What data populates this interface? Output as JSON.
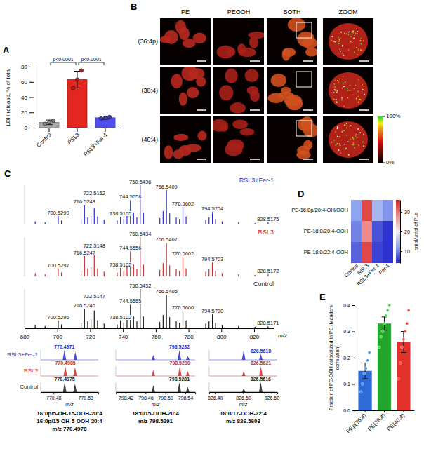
{
  "chart_data": [
    {
      "panel": "A",
      "type": "bar",
      "ylabel": "LDH release, % of total",
      "categories": [
        "Control",
        "RSL3",
        "RSL3+Fer-1"
      ],
      "values": [
        7,
        63,
        13
      ],
      "errors": [
        3,
        11,
        2
      ],
      "points": [
        [
          5,
          7,
          9
        ],
        [
          52,
          63,
          75
        ],
        [
          12,
          13,
          14
        ]
      ],
      "colors": [
        "#a9a9a9",
        "#e3261f",
        "#4f4ff0"
      ],
      "ylim": [
        0,
        80
      ],
      "yticks": [
        0,
        20,
        40,
        60,
        80
      ],
      "comparisons": [
        {
          "from": 0,
          "to": 1,
          "label": "p<0.0001"
        },
        {
          "from": 1,
          "to": 2,
          "label": "p<0.0001"
        }
      ]
    },
    {
      "panel": "B",
      "type": "image_grid",
      "columns": [
        "PE",
        "PEOOH",
        "BOTH",
        "ZOOM"
      ],
      "rows": [
        "(36:4p)",
        "(38:4)",
        "(40:4)"
      ],
      "colorbar": {
        "range": [
          0,
          100
        ],
        "ticks": [
          {
            "value": 100,
            "label": "100%"
          },
          {
            "value": 0,
            "label": "0%"
          }
        ]
      }
    },
    {
      "panel": "C",
      "type": "spectrum",
      "xlabel": "m/z",
      "xlim": [
        680,
        832
      ],
      "xticks": [
        680,
        700,
        720,
        740,
        760,
        780,
        800,
        820
      ],
      "ylim": [
        0,
        1
      ],
      "tick_labels": "x",
      "series": [
        {
          "name": "RSL3+Fer-1",
          "color": "#2c2ccf",
          "x": [
            686.5,
            692.5,
            700.5299,
            702.5,
            714.5,
            716.5248,
            718.5,
            720.5,
            722.5152,
            724.5,
            728.5,
            736.5,
            738.5105,
            740.5,
            742.5,
            744.5558,
            746.5,
            748.5,
            750.5436,
            752.5,
            762.5,
            764.5,
            766.5409,
            768.5,
            772.5,
            774.5,
            776.5602,
            778.5,
            790.5,
            792.5,
            794.5704,
            796.5,
            800.5,
            810.5,
            820.5,
            828.5175
          ],
          "values": [
            0.08,
            0.06,
            0.22,
            0.1,
            0.14,
            0.5,
            0.18,
            0.22,
            0.42,
            0.2,
            0.12,
            0.1,
            0.2,
            0.14,
            0.28,
            0.62,
            0.3,
            0.18,
            1.0,
            0.3,
            0.16,
            0.34,
            0.88,
            0.28,
            0.18,
            0.14,
            0.45,
            0.2,
            0.12,
            0.18,
            0.32,
            0.14,
            0.08,
            0.06,
            0.04,
            0.06
          ],
          "labels": [
            null,
            null,
            "700.5299",
            null,
            null,
            "716.5248",
            null,
            null,
            "722.5152",
            null,
            null,
            null,
            "738.5105",
            null,
            null,
            "744.5558",
            null,
            null,
            "750.5436",
            null,
            null,
            null,
            "766.5409",
            null,
            null,
            null,
            "776.5602",
            null,
            null,
            null,
            "794.5704",
            null,
            null,
            null,
            null,
            "828.5175"
          ]
        },
        {
          "name": "RSL3",
          "color": "#cc2a2a",
          "x": [
            686.5,
            692.5,
            700.5297,
            702.5,
            714.5,
            716.5247,
            718.5,
            720.5,
            722.5148,
            724.5,
            728.5,
            736.5,
            738.5102,
            740.5,
            742.5,
            744.5556,
            746.5,
            748.5,
            750.5434,
            752.5,
            762.5,
            764.5,
            766.5407,
            768.5,
            772.5,
            774.5,
            776.5602,
            778.5,
            790.5,
            792.5,
            794.5703,
            796.5,
            800.5,
            810.5,
            820.5,
            828.5172
          ],
          "values": [
            0.08,
            0.06,
            0.2,
            0.1,
            0.14,
            0.52,
            0.2,
            0.24,
            0.55,
            0.2,
            0.12,
            0.1,
            0.22,
            0.14,
            0.28,
            0.64,
            0.3,
            0.18,
            1.0,
            0.3,
            0.16,
            0.34,
            0.85,
            0.28,
            0.18,
            0.14,
            0.5,
            0.2,
            0.12,
            0.18,
            0.35,
            0.14,
            0.08,
            0.06,
            0.04,
            0.05
          ],
          "labels": [
            null,
            null,
            "700.5297",
            null,
            null,
            "716.5247",
            null,
            null,
            "722.5148",
            null,
            null,
            null,
            "738.5102",
            null,
            null,
            "744.5556",
            null,
            null,
            "750.5434",
            null,
            null,
            null,
            "766.5407",
            null,
            null,
            null,
            "776.5602",
            null,
            null,
            null,
            "794.5703",
            null,
            null,
            null,
            null,
            "828.5172"
          ]
        },
        {
          "name": "Control",
          "color": "#1a1a1a",
          "x": [
            686.5,
            692.5,
            700.5296,
            702.5,
            714.5,
            716.5246,
            718.5,
            720.5,
            722.5147,
            724.5,
            728.5,
            736.5,
            738.5102,
            740.5,
            742.5,
            744.5555,
            746.5,
            748.5,
            750.5432,
            752.5,
            762.5,
            764.5,
            766.5405,
            768.5,
            772.5,
            774.5,
            776.56,
            778.5,
            790.5,
            792.5,
            794.57,
            796.5,
            800.5,
            810.5,
            820.5,
            828.5171
          ],
          "values": [
            0.08,
            0.06,
            0.2,
            0.1,
            0.14,
            0.5,
            0.18,
            0.22,
            0.45,
            0.2,
            0.12,
            0.1,
            0.2,
            0.14,
            0.28,
            0.6,
            0.3,
            0.18,
            1.0,
            0.3,
            0.16,
            0.34,
            0.85,
            0.28,
            0.18,
            0.14,
            0.45,
            0.2,
            0.12,
            0.18,
            0.35,
            0.14,
            0.08,
            0.06,
            0.04,
            0.05
          ],
          "labels": [
            null,
            null,
            "700.5296",
            null,
            null,
            "716.5246",
            null,
            null,
            "722.5147",
            null,
            null,
            null,
            "738.5102",
            null,
            null,
            "744.5555",
            null,
            null,
            "750.5432",
            null,
            null,
            null,
            "766.5405",
            null,
            null,
            null,
            "776.5600",
            null,
            null,
            null,
            "794.5700",
            null,
            null,
            null,
            null,
            "828.5171"
          ]
        }
      ],
      "insets": [
        {
          "xlim": [
            770.46,
            770.55
          ],
          "xticks": [
            770.48,
            770.53
          ],
          "caption": [
            "16:0p/5-OH-15-OOH-20:4",
            "16:0p/15-OH-5-OOH-20:4",
            "m/z 770.4978"
          ],
          "series": [
            {
              "x": [
                770.4971,
                770.5141
              ],
              "values": [
                1.0,
                0.8
              ],
              "labels": [
                "770.4971",
                null
              ]
            },
            {
              "x": [
                770.4985,
                770.5136
              ],
              "values": [
                1.0,
                0.9
              ],
              "labels": [
                "770.4985",
                null
              ]
            },
            {
              "x": [
                770.4975,
                770.5136
              ],
              "values": [
                1.0,
                0.85
              ],
              "labels": [
                "770.4975",
                null
              ]
            }
          ]
        },
        {
          "xlim": [
            798.4,
            798.56
          ],
          "xticks": [
            798.42,
            798.46,
            {
              "value": 798.5,
              "label": "798.50"
            },
            798.54
          ],
          "caption": [
            "18:0/15-OOH-20:4",
            "m/z 798.5291"
          ],
          "series": [
            {
              "x": [
                798.4758,
                798.5282,
                798.5451
              ],
              "values": [
                0.5,
                1.0,
                0.4
              ],
              "labels": [
                null,
                "798.5282",
                null
              ]
            },
            {
              "x": [
                798.4757,
                798.529,
                798.5449
              ],
              "values": [
                0.6,
                1.0,
                0.5
              ],
              "labels": [
                null,
                "798.5290",
                null
              ]
            },
            {
              "x": [
                798.4757,
                798.5281,
                798.5449
              ],
              "values": [
                0.7,
                1.0,
                0.55
              ],
              "labels": [
                null,
                "798.5281",
                null
              ]
            }
          ]
        },
        {
          "xlim": [
            826.38,
            826.62
          ],
          "xticks": [
            {
              "value": 826.4,
              "label": "826.40"
            },
            {
              "value": 826.5,
              "label": "826.50"
            },
            {
              "value": 826.6,
              "label": "826.60"
            }
          ],
          "caption": [
            "18:0/17-OOH-22:4",
            "m/z 826.5603"
          ],
          "series": [
            {
              "x": [
                826.5015,
                826.5618
              ],
              "values": [
                1.0,
                0.6
              ],
              "labels": [
                null,
                "826.5618"
              ]
            },
            {
              "x": [
                826.5016,
                826.5621
              ],
              "values": [
                0.5,
                1.0
              ],
              "labels": [
                null,
                "826.5621"
              ]
            },
            {
              "x": [
                826.5016,
                826.5616
              ],
              "values": [
                0.4,
                1.0
              ],
              "labels": [
                null,
                "826.5616"
              ]
            }
          ]
        }
      ]
    },
    {
      "panel": "D",
      "type": "heatmap",
      "rows": [
        "PE-16:0p/20:4-OH/OOH",
        "PE-18:0/20:4-OOH",
        "PE-18:0/22:4-OOH"
      ],
      "columns": [
        "Control",
        "RSL3",
        "RSL3+Fer-1",
        "Fer-1"
      ],
      "cells": [
        [
          12,
          33,
          14,
          11
        ],
        [
          10,
          28,
          7,
          5
        ],
        [
          8,
          33,
          6,
          5
        ]
      ],
      "colorbar": {
        "label": "pmol/μmol of PLs",
        "range": [
          4,
          36
        ],
        "ticks": [
          10,
          20,
          30
        ]
      }
    },
    {
      "panel": "E",
      "type": "bar",
      "ylabel": "Fraction of PE-OOH colocalized to PE (Manders correlation)",
      "categories": [
        "PEp(36:4)",
        "PE(38:4)",
        "PE(40:4)"
      ],
      "values": [
        0.15,
        0.33,
        0.26
      ],
      "errors": [
        0.03,
        0.025,
        0.04
      ],
      "points": [
        [
          0.07,
          0.1,
          0.14,
          0.16,
          0.19,
          0.22
        ],
        [
          0.24,
          0.28,
          0.3,
          0.33,
          0.36,
          0.38,
          0.4
        ],
        [
          0.12,
          0.18,
          0.24,
          0.27,
          0.3,
          0.33,
          0.38
        ]
      ],
      "colors": [
        "#2e6bd8",
        "#22a52c",
        "#e2312b"
      ],
      "ylim": [
        0,
        0.4
      ],
      "yticks": [
        {
          "value": 0,
          "label": "0.0"
        },
        0.1,
        0.2,
        0.3,
        0.4
      ]
    }
  ]
}
